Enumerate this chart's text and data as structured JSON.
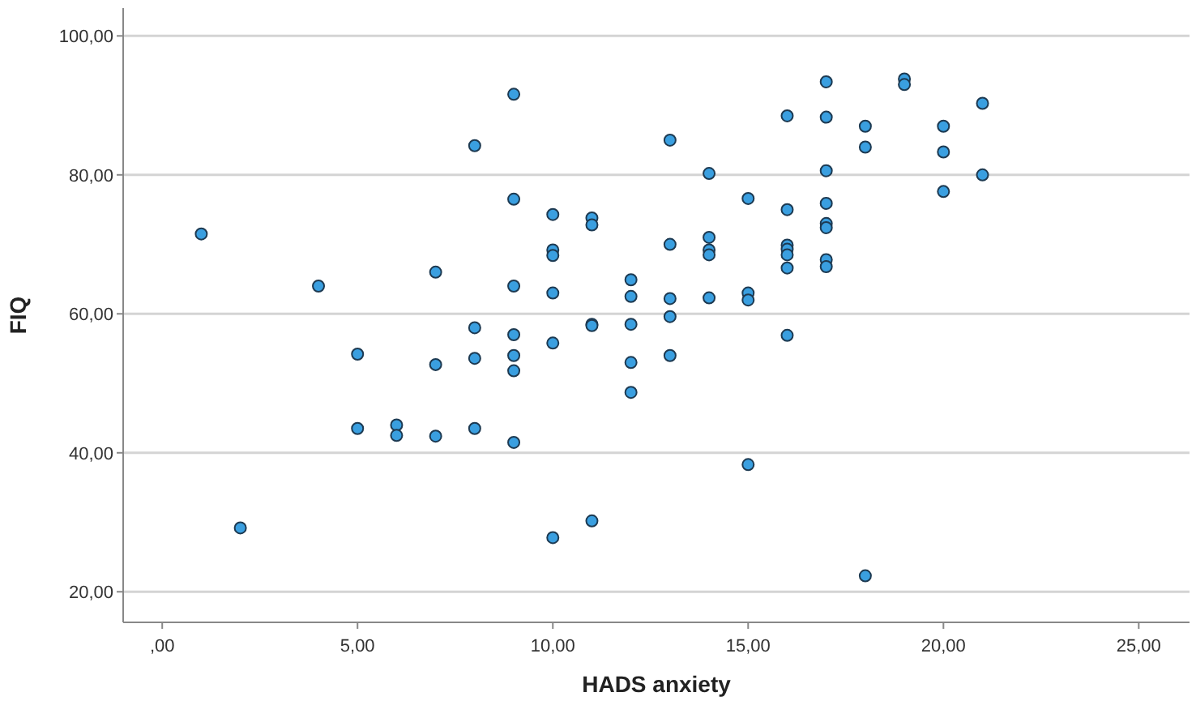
{
  "chart_data": {
    "type": "scatter",
    "xlabel": "HADS anxiety",
    "ylabel": "FIQ",
    "grid": "y",
    "marker": "circle",
    "xlim": [
      -1,
      26.3
    ],
    "ylim": [
      15.6,
      104
    ],
    "xticks": [
      {
        "value": 0,
        "label": ",00"
      },
      {
        "value": 5,
        "label": "5,00"
      },
      {
        "value": 10,
        "label": "10,00"
      },
      {
        "value": 15,
        "label": "15,00"
      },
      {
        "value": 20,
        "label": "20,00"
      },
      {
        "value": 25,
        "label": "25,00"
      }
    ],
    "yticks": [
      {
        "value": 20,
        "label": "20,00"
      },
      {
        "value": 40,
        "label": "40,00"
      },
      {
        "value": 60,
        "label": "60,00"
      },
      {
        "value": 80,
        "label": "80,00"
      },
      {
        "value": 100,
        "label": "100,00"
      }
    ],
    "series": [
      {
        "color": "#3a9fe0",
        "x": [
          1,
          2,
          4,
          5,
          5,
          6,
          6,
          7,
          7,
          7,
          8,
          8,
          8,
          8,
          9,
          9,
          9,
          9,
          9,
          9,
          9,
          10,
          10,
          10,
          10,
          10,
          10,
          11,
          11,
          11,
          11,
          11,
          12,
          12,
          12,
          12,
          12,
          13,
          13,
          13,
          13,
          13,
          14,
          14,
          14,
          14,
          14,
          15,
          15,
          15,
          15,
          16,
          16,
          16,
          16,
          16,
          16,
          16,
          17,
          17,
          17,
          17,
          17,
          17,
          17,
          17,
          18,
          18,
          18,
          19,
          19,
          20,
          20,
          20,
          21,
          21
        ],
        "values": [
          71.5,
          29.2,
          64,
          54.2,
          43.5,
          44,
          42.5,
          66,
          52.7,
          42.4,
          84.2,
          58,
          53.6,
          43.5,
          91.6,
          76.5,
          64,
          57,
          54,
          51.8,
          41.5,
          74.3,
          69.2,
          68.4,
          63,
          55.8,
          27.8,
          73.8,
          72.8,
          58.5,
          58.3,
          30.2,
          64.9,
          62.5,
          58.5,
          53,
          48.7,
          85,
          70,
          62.2,
          59.6,
          54,
          80.2,
          71,
          69.2,
          68.5,
          62.3,
          76.6,
          63,
          62,
          38.3,
          88.5,
          75,
          69.9,
          69.3,
          68.5,
          66.6,
          56.9,
          93.4,
          88.3,
          80.6,
          75.9,
          73,
          72.4,
          67.8,
          66.8,
          87,
          84,
          22.3,
          93.8,
          93,
          87,
          83.3,
          77.6,
          90.3,
          80
        ]
      }
    ]
  }
}
